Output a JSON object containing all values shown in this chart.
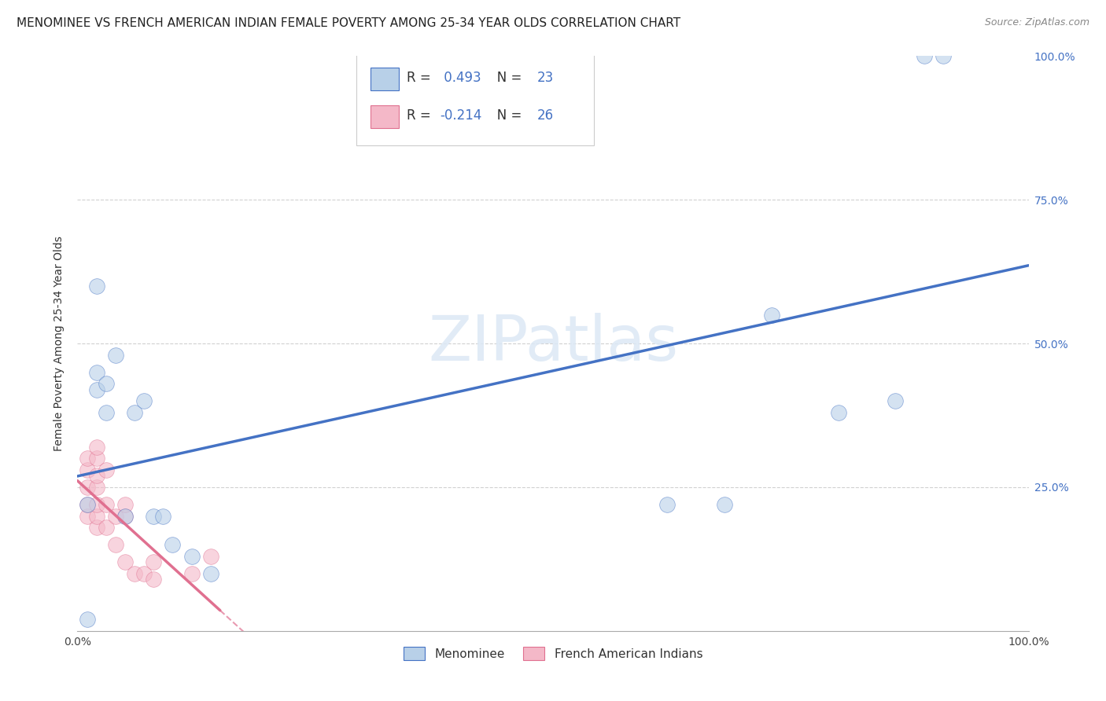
{
  "title": "MENOMINEE VS FRENCH AMERICAN INDIAN FEMALE POVERTY AMONG 25-34 YEAR OLDS CORRELATION CHART",
  "source": "Source: ZipAtlas.com",
  "ylabel": "Female Poverty Among 25-34 Year Olds",
  "xlim": [
    0,
    1.0
  ],
  "ylim": [
    0,
    1.0
  ],
  "menominee_color": "#b8d0e8",
  "french_color": "#f4b8c8",
  "menominee_line_color": "#4472c4",
  "french_line_color": "#e07090",
  "R_menominee": "0.493",
  "N_menominee": "23",
  "R_french": "-0.214",
  "N_french": "26",
  "menominee_x": [
    0.01,
    0.01,
    0.02,
    0.02,
    0.02,
    0.03,
    0.03,
    0.04,
    0.05,
    0.06,
    0.07,
    0.08,
    0.09,
    0.1,
    0.12,
    0.14,
    0.62,
    0.68,
    0.73,
    0.8,
    0.86,
    0.89,
    0.91
  ],
  "menominee_y": [
    0.02,
    0.22,
    0.42,
    0.45,
    0.6,
    0.38,
    0.43,
    0.48,
    0.2,
    0.38,
    0.4,
    0.2,
    0.2,
    0.15,
    0.13,
    0.1,
    0.22,
    0.22,
    0.55,
    0.38,
    0.4,
    1.0,
    1.0
  ],
  "french_x": [
    0.01,
    0.01,
    0.01,
    0.01,
    0.01,
    0.02,
    0.02,
    0.02,
    0.02,
    0.02,
    0.02,
    0.02,
    0.03,
    0.03,
    0.03,
    0.04,
    0.04,
    0.05,
    0.05,
    0.05,
    0.06,
    0.07,
    0.08,
    0.08,
    0.12,
    0.14
  ],
  "french_y": [
    0.2,
    0.22,
    0.25,
    0.28,
    0.3,
    0.18,
    0.2,
    0.22,
    0.25,
    0.27,
    0.3,
    0.32,
    0.18,
    0.22,
    0.28,
    0.15,
    0.2,
    0.12,
    0.2,
    0.22,
    0.1,
    0.1,
    0.09,
    0.12,
    0.1,
    0.13
  ],
  "grid_color": "#cccccc",
  "background_color": "#ffffff",
  "watermark_text": "ZIPatlas",
  "watermark_color": "#dce8f5",
  "title_fontsize": 11,
  "axis_label_fontsize": 10,
  "tick_fontsize": 10,
  "legend_fontsize": 12,
  "legend_num_color": "#4472c4",
  "legend_label_color": "#333333"
}
